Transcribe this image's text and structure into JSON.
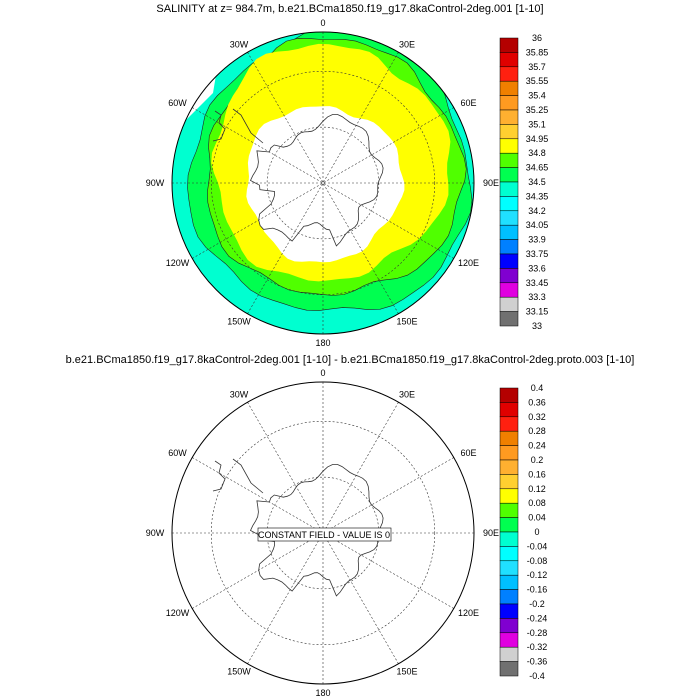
{
  "panels": [
    {
      "title": "SALINITY at z= 984.7m, b.e21.BCma1850.f19_g17.8kaControl-2deg.001 [1-10]",
      "colorbar_labels": [
        "36",
        "35.85",
        "35.7",
        "35.55",
        "35.4",
        "35.25",
        "35.1",
        "34.95",
        "34.8",
        "34.65",
        "34.5",
        "34.35",
        "34.2",
        "34.05",
        "33.9",
        "33.75",
        "33.6",
        "33.45",
        "33.3",
        "33.15",
        "33"
      ],
      "annotation": ""
    },
    {
      "title": "b.e21.BCma1850.f19_g17.8kaControl-2deg.001 [1-10] - b.e21.BCma1850.f19_g17.8kaControl-2deg.proto.003 [1-10]",
      "colorbar_labels": [
        "0.4",
        "0.36",
        "0.32",
        "0.28",
        "0.24",
        "0.2",
        "0.16",
        "0.12",
        "0.08",
        "0.04",
        "0",
        "-0.04",
        "-0.08",
        "-0.12",
        "-0.16",
        "-0.2",
        "-0.24",
        "-0.28",
        "-0.32",
        "-0.36",
        "-0.4"
      ],
      "annotation": "CONSTANT FIELD - VALUE IS 0"
    }
  ],
  "longitude_labels": [
    "0",
    "30E",
    "60E",
    "90E",
    "120E",
    "150E",
    "180",
    "150W",
    "120W",
    "90W",
    "60W",
    "30W"
  ],
  "colorbar_colors": [
    "#b40000",
    "#e00000",
    "#ff2010",
    "#f08000",
    "#ff9a20",
    "#ffb030",
    "#ffd030",
    "#ffff00",
    "#50ff00",
    "#00ff50",
    "#00ffd0",
    "#00ffff",
    "#20e0ff",
    "#00c0ff",
    "#0080ff",
    "#0000ff",
    "#8000d0",
    "#e000e0",
    "#d0d0d0",
    "#707070"
  ],
  "field_colors": {
    "yellow": "#ffff00",
    "light_green": "#50ff00",
    "green": "#00ff50",
    "cyan": "#00ffd0",
    "land": "#ffffff"
  }
}
